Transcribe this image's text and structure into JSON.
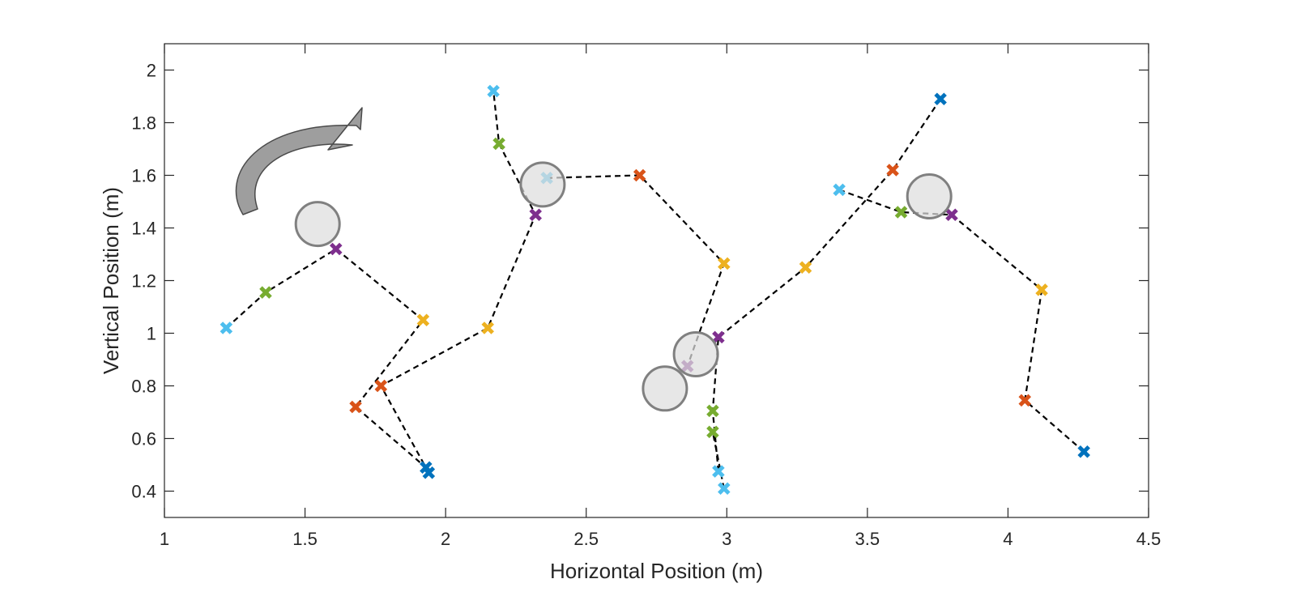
{
  "chart_data": {
    "type": "scatter",
    "title": "",
    "xlabel": "Horizontal Position (m)",
    "ylabel": "Vertical Position (m)",
    "xlim": [
      1,
      4.5
    ],
    "ylim": [
      0.3,
      2.1
    ],
    "xticks": [
      "1",
      "1.5",
      "2",
      "2.5",
      "3",
      "3.5",
      "4",
      "4.5"
    ],
    "xtick_values": [
      1,
      1.5,
      2,
      2.5,
      3,
      3.5,
      4,
      4.5
    ],
    "yticks": [
      "0.4",
      "0.6",
      "0.8",
      "1",
      "1.2",
      "1.4",
      "1.6",
      "1.8",
      "2"
    ],
    "ytick_values": [
      0.4,
      0.6,
      0.8,
      1.0,
      1.2,
      1.4,
      1.6,
      1.8,
      2.0
    ],
    "grid": false,
    "marker_colors": {
      "light-blue": "#4dbeee",
      "green": "#77ac30",
      "purple": "#7e2f8e",
      "yellow": "#edb120",
      "orange": "#d95319",
      "dark-blue": "#0072bd"
    },
    "trajectories": [
      {
        "points": [
          {
            "x": 1.22,
            "y": 1.02,
            "c": "light-blue"
          },
          {
            "x": 1.36,
            "y": 1.155,
            "c": "green"
          },
          {
            "x": 1.61,
            "y": 1.32,
            "c": "purple"
          },
          {
            "x": 1.92,
            "y": 1.05,
            "c": "yellow"
          },
          {
            "x": 1.68,
            "y": 0.72,
            "c": "orange"
          },
          {
            "x": 1.93,
            "y": 0.49,
            "c": "dark-blue"
          }
        ]
      },
      {
        "points": [
          {
            "x": 1.94,
            "y": 0.47,
            "c": "dark-blue"
          },
          {
            "x": 1.77,
            "y": 0.8,
            "c": "orange"
          },
          {
            "x": 2.15,
            "y": 1.02,
            "c": "yellow"
          },
          {
            "x": 2.32,
            "y": 1.45,
            "c": "purple"
          },
          {
            "x": 2.19,
            "y": 1.72,
            "c": "green"
          },
          {
            "x": 2.17,
            "y": 1.92,
            "c": "light-blue"
          }
        ]
      },
      {
        "points": [
          {
            "x": 2.36,
            "y": 1.59,
            "c": "light-blue"
          },
          {
            "x": 2.69,
            "y": 1.6,
            "c": "orange"
          },
          {
            "x": 2.99,
            "y": 1.265,
            "c": "yellow"
          },
          {
            "x": 2.86,
            "y": 0.875,
            "c": "purple"
          }
        ]
      },
      {
        "points": [
          {
            "x": 3.76,
            "y": 1.89,
            "c": "dark-blue"
          },
          {
            "x": 3.59,
            "y": 1.62,
            "c": "orange"
          },
          {
            "x": 3.28,
            "y": 1.25,
            "c": "yellow"
          },
          {
            "x": 2.97,
            "y": 0.985,
            "c": "purple"
          },
          {
            "x": 2.95,
            "y": 0.705,
            "c": "green"
          },
          {
            "x": 2.97,
            "y": 0.475,
            "c": "light-blue"
          }
        ]
      },
      {
        "points": [
          {
            "x": 2.99,
            "y": 0.41,
            "c": "light-blue"
          },
          {
            "x": 2.95,
            "y": 0.625,
            "c": "green"
          }
        ]
      },
      {
        "points": [
          {
            "x": 3.4,
            "y": 1.545,
            "c": "light-blue"
          },
          {
            "x": 3.62,
            "y": 1.46,
            "c": "green"
          },
          {
            "x": 3.8,
            "y": 1.45,
            "c": "purple"
          },
          {
            "x": 4.12,
            "y": 1.165,
            "c": "yellow"
          },
          {
            "x": 4.06,
            "y": 0.745,
            "c": "orange"
          },
          {
            "x": 4.27,
            "y": 0.55,
            "c": "dark-blue"
          }
        ]
      }
    ],
    "circles": [
      {
        "x": 1.545,
        "y": 1.415
      },
      {
        "x": 2.345,
        "y": 1.565
      },
      {
        "x": 2.89,
        "y": 0.92
      },
      {
        "x": 2.78,
        "y": 0.79
      },
      {
        "x": 3.72,
        "y": 1.52
      }
    ],
    "annotation_arrow": {
      "description": "curved arrow",
      "fill": "#9e9e9e"
    }
  }
}
